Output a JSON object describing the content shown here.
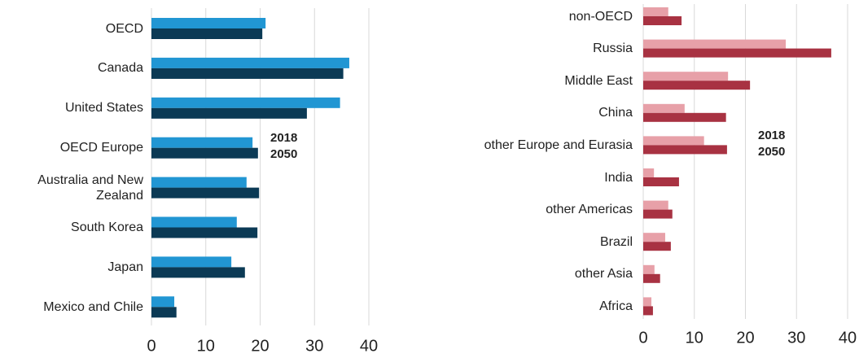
{
  "chart_data": [
    {
      "type": "bar",
      "orientation": "horizontal",
      "categories": [
        "OECD",
        "Canada",
        "United States",
        "OECD Europe",
        "Australia and New Zealand",
        "South Korea",
        "Japan",
        "Mexico and Chile"
      ],
      "series": [
        {
          "name": "2018",
          "color": "#2196d3",
          "values": [
            21,
            36.4,
            34.7,
            18.6,
            17.5,
            15.7,
            14.7,
            4.2
          ]
        },
        {
          "name": "2050",
          "color": "#0b3a55",
          "values": [
            20.4,
            35.3,
            28.6,
            19.6,
            19.8,
            19.5,
            17.2,
            4.6
          ]
        }
      ],
      "xlim": [
        0,
        40
      ],
      "xticks": [
        0,
        10,
        20,
        30,
        40
      ],
      "grid": true
    },
    {
      "type": "bar",
      "orientation": "horizontal",
      "categories": [
        "non-OECD",
        "Russia",
        "Middle East",
        "China",
        "other Europe and Eurasia",
        "India",
        "other Americas",
        "Brazil",
        "other Asia",
        "Africa"
      ],
      "series": [
        {
          "name": "2018",
          "color": "#e7a0a8",
          "values": [
            4.9,
            27.9,
            16.6,
            8.1,
            11.9,
            2.1,
            4.9,
            4.3,
            2.2,
            1.6
          ]
        },
        {
          "name": "2050",
          "color": "#a83242",
          "values": [
            7.5,
            36.8,
            20.9,
            16.2,
            16.4,
            7.0,
            5.7,
            5.4,
            3.3,
            1.9
          ]
        }
      ],
      "xlim": [
        0,
        40
      ],
      "xticks": [
        0,
        10,
        20,
        30,
        40
      ],
      "grid": true
    }
  ]
}
